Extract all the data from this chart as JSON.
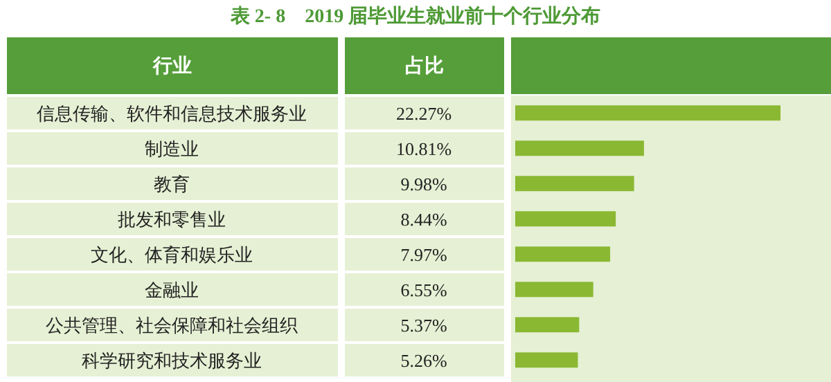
{
  "chart_data": {
    "type": "bar",
    "orientation": "horizontal",
    "title": "表 2- 8　2019 届毕业生就业前十个行业分布",
    "ylabel": "行业",
    "xlabel": "占比",
    "categories": [
      "信息传输、软件和信息技术服务业",
      "制造业",
      "教育",
      "批发和零售业",
      "文化、体育和娱乐业",
      "金融业",
      "公共管理、社会保障和社会组织",
      "科学研究和技术服务业"
    ],
    "values": [
      22.27,
      10.81,
      9.98,
      8.44,
      7.97,
      6.55,
      5.37,
      5.26
    ],
    "value_labels": [
      "22.27%",
      "10.81%",
      "9.98%",
      "8.44%",
      "7.97%",
      "6.55%",
      "5.37%",
      "5.26%"
    ],
    "color": "#8ab833"
  }
}
